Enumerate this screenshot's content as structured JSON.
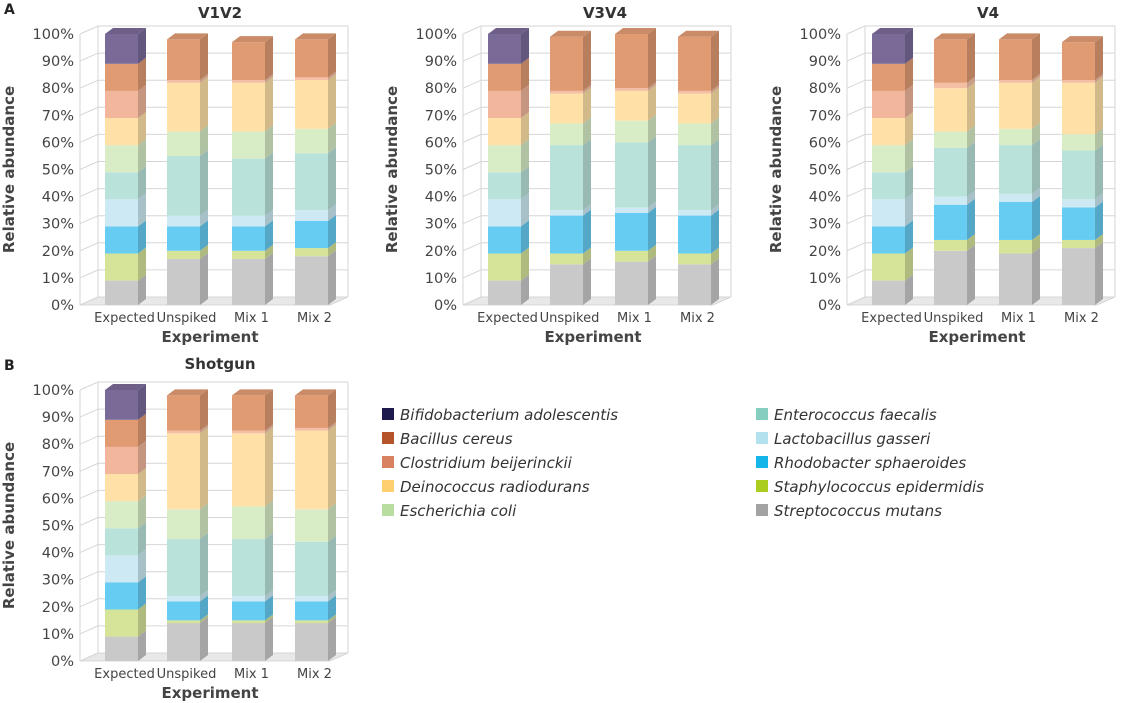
{
  "chart_data": [
    {
      "panel": "A",
      "type": "stacked-bar",
      "title": "V1V2",
      "xlabel": "Experiment",
      "ylabel": "Relative abundance",
      "ylim": [
        0,
        100
      ],
      "yticks": [
        "0%",
        "10%",
        "20%",
        "30%",
        "40%",
        "50%",
        "60%",
        "70%",
        "80%",
        "90%",
        "100%"
      ],
      "categories": [
        "Expected",
        "Unspiked",
        "Mix 1",
        "Mix 2"
      ],
      "series": [
        {
          "name": "Streptococcus mutans",
          "values": [
            9,
            17,
            17,
            18
          ]
        },
        {
          "name": "Staphylococcus epidermidis",
          "values": [
            10,
            3,
            3,
            3
          ]
        },
        {
          "name": "Rhodobacter sphaeroides",
          "values": [
            10,
            9,
            9,
            10
          ]
        },
        {
          "name": "Lactobacillus gasseri",
          "values": [
            10,
            4,
            4,
            4
          ]
        },
        {
          "name": "Enterococcus faecalis",
          "values": [
            10,
            22,
            21,
            21
          ]
        },
        {
          "name": "Escherichia coli",
          "values": [
            10,
            9,
            10,
            9
          ]
        },
        {
          "name": "Deinococcus radiodurans",
          "values": [
            10,
            18,
            18,
            18
          ]
        },
        {
          "name": "Clostridium beijerinckii",
          "values": [
            10,
            1,
            1,
            1
          ]
        },
        {
          "name": "Bacillus cereus",
          "values": [
            10,
            15,
            14,
            14
          ]
        },
        {
          "name": "Bifidobacterium adolescentis",
          "values": [
            11,
            0,
            0,
            0
          ]
        }
      ]
    },
    {
      "panel": "",
      "type": "stacked-bar",
      "title": "V3V4",
      "xlabel": "Experiment",
      "ylabel": "Relative abundance",
      "ylim": [
        0,
        100
      ],
      "yticks": [
        "0%",
        "10%",
        "20%",
        "30%",
        "40%",
        "50%",
        "60%",
        "70%",
        "80%",
        "90%",
        "100%"
      ],
      "categories": [
        "Expected",
        "Unspiked",
        "Mix 1",
        "Mix 2"
      ],
      "series": [
        {
          "name": "Streptococcus mutans",
          "values": [
            9,
            15,
            16,
            15
          ]
        },
        {
          "name": "Staphylococcus epidermidis",
          "values": [
            10,
            4,
            4,
            4
          ]
        },
        {
          "name": "Rhodobacter sphaeroides",
          "values": [
            10,
            14,
            14,
            14
          ]
        },
        {
          "name": "Lactobacillus gasseri",
          "values": [
            10,
            2,
            2,
            2
          ]
        },
        {
          "name": "Enterococcus faecalis",
          "values": [
            10,
            24,
            24,
            24
          ]
        },
        {
          "name": "Escherichia coli",
          "values": [
            10,
            8,
            8,
            8
          ]
        },
        {
          "name": "Deinococcus radiodurans",
          "values": [
            10,
            11,
            11,
            11
          ]
        },
        {
          "name": "Clostridium beijerinckii",
          "values": [
            10,
            1,
            1,
            1
          ]
        },
        {
          "name": "Bacillus cereus",
          "values": [
            10,
            20,
            20,
            20
          ]
        },
        {
          "name": "Bifidobacterium adolescentis",
          "values": [
            11,
            0,
            0,
            0
          ]
        }
      ]
    },
    {
      "panel": "",
      "type": "stacked-bar",
      "title": "V4",
      "xlabel": "Experiment",
      "ylabel": "Relative abundance",
      "ylim": [
        0,
        100
      ],
      "yticks": [
        "0%",
        "10%",
        "20%",
        "30%",
        "40%",
        "50%",
        "60%",
        "70%",
        "80%",
        "90%",
        "100%"
      ],
      "categories": [
        "Expected",
        "Unspiked",
        "Mix 1",
        "Mix 2"
      ],
      "series": [
        {
          "name": "Streptococcus mutans",
          "values": [
            9,
            20,
            19,
            21
          ]
        },
        {
          "name": "Staphylococcus epidermidis",
          "values": [
            10,
            4,
            5,
            3
          ]
        },
        {
          "name": "Rhodobacter sphaeroides",
          "values": [
            10,
            13,
            14,
            12
          ]
        },
        {
          "name": "Lactobacillus gasseri",
          "values": [
            10,
            3,
            3,
            3
          ]
        },
        {
          "name": "Enterococcus faecalis",
          "values": [
            10,
            18,
            18,
            18
          ]
        },
        {
          "name": "Escherichia coli",
          "values": [
            10,
            6,
            6,
            6
          ]
        },
        {
          "name": "Deinococcus radiodurans",
          "values": [
            10,
            16,
            17,
            19
          ]
        },
        {
          "name": "Clostridium beijerinckii",
          "values": [
            10,
            2,
            1,
            1
          ]
        },
        {
          "name": "Bacillus cereus",
          "values": [
            10,
            16,
            15,
            14
          ]
        },
        {
          "name": "Bifidobacterium adolescentis",
          "values": [
            11,
            0,
            0,
            0
          ]
        }
      ]
    },
    {
      "panel": "B",
      "type": "stacked-bar",
      "title": "Shotgun",
      "xlabel": "Experiment",
      "ylabel": "Relative abundance",
      "ylim": [
        0,
        100
      ],
      "yticks": [
        "0%",
        "10%",
        "20%",
        "30%",
        "40%",
        "50%",
        "60%",
        "70%",
        "80%",
        "90%",
        "100%"
      ],
      "categories": [
        "Expected",
        "Unspiked",
        "Mix 1",
        "Mix 2"
      ],
      "series": [
        {
          "name": "Streptococcus mutans",
          "values": [
            9,
            14,
            14,
            14
          ]
        },
        {
          "name": "Staphylococcus epidermidis",
          "values": [
            10,
            1,
            1,
            1
          ]
        },
        {
          "name": "Rhodobacter sphaeroides",
          "values": [
            10,
            7,
            7,
            7
          ]
        },
        {
          "name": "Lactobacillus gasseri",
          "values": [
            10,
            2,
            2,
            2
          ]
        },
        {
          "name": "Enterococcus faecalis",
          "values": [
            10,
            21,
            21,
            20
          ]
        },
        {
          "name": "Escherichia coli",
          "values": [
            10,
            11,
            12,
            12
          ]
        },
        {
          "name": "Deinococcus radiodurans",
          "values": [
            10,
            28,
            27,
            29
          ]
        },
        {
          "name": "Clostridium beijerinckii",
          "values": [
            10,
            1,
            1,
            1
          ]
        },
        {
          "name": "Bacillus cereus",
          "values": [
            10,
            13,
            13,
            12
          ]
        },
        {
          "name": "Bifidobacterium adolescentis",
          "values": [
            11,
            0,
            0,
            0
          ]
        }
      ]
    }
  ],
  "legend": [
    {
      "name": "Bifidobacterium adolescentis",
      "color": "#1f1a4d"
    },
    {
      "name": "Bacillus cereus",
      "color": "#b5532a"
    },
    {
      "name": "Clostridium beijerinckii",
      "color": "#d9825f"
    },
    {
      "name": "Deinococcus radiodurans",
      "color": "#ffcf70"
    },
    {
      "name": "Escherichia coli",
      "color": "#b7dda0"
    },
    {
      "name": "Enterococcus faecalis",
      "color": "#86cfc0"
    },
    {
      "name": "Lactobacillus gasseri",
      "color": "#b4e1ee"
    },
    {
      "name": "Rhodobacter sphaeroides",
      "color": "#14b6ea"
    },
    {
      "name": "Staphylococcus epidermidis",
      "color": "#aacd1f"
    },
    {
      "name": "Streptococcus mutans",
      "color": "#a3a3a3"
    }
  ],
  "colors": {
    "Expected": {
      "Streptococcus mutans": "#c9c9c9",
      "Staphylococcus epidermidis": "#d6e49a",
      "Rhodobacter sphaeroides": "#66ccf2",
      "Lactobacillus gasseri": "#cdeaf4",
      "Enterococcus faecalis": "#b9e3da",
      "Escherichia coli": "#d8ecc6",
      "Deinococcus radiodurans": "#ffe1a8",
      "Clostridium beijerinckii": "#f2b69c",
      "Bacillus cereus": "#e09b73",
      "Bifidobacterium adolescentis": "#7a6a98"
    },
    "Other": {
      "Streptococcus mutans": "#c9c9c9",
      "Staphylococcus epidermidis": "#d6e49a",
      "Rhodobacter sphaeroides": "#66ccf2",
      "Lactobacillus gasseri": "#cdeaf4",
      "Enterococcus faecalis": "#b9e3da",
      "Escherichia coli": "#d8ecc6",
      "Deinococcus radiodurans": "#ffe1a8",
      "Clostridium beijerinckii": "#f5bfa5",
      "Bacillus cereus": "#e09b73",
      "Bifidobacterium adolescentis": "#7a6a98"
    },
    "grid": "#d6d6d6",
    "floor": "#e8e8e8",
    "axisText": "#444444"
  }
}
